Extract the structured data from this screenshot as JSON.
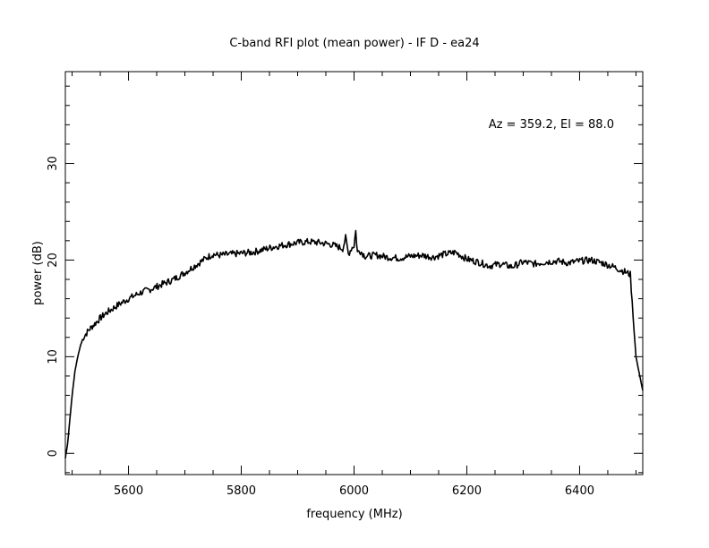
{
  "chart_data": {
    "type": "line",
    "title": "C-band RFI plot (mean power) - IF D - ea24",
    "xlabel": "frequency (MHz)",
    "ylabel": "power (dB)",
    "annotation": "Az = 359.2, El = 88.0",
    "xlim": [
      5488,
      6512
    ],
    "ylim": [
      -2.2,
      39.5
    ],
    "x_ticks": [
      5600,
      5800,
      6000,
      6200,
      6400
    ],
    "y_ticks": [
      0,
      10,
      20,
      30
    ],
    "grid": false,
    "line_color": "#000000",
    "series": [
      {
        "x": [
          5488,
          5492,
          5496,
          5500,
          5505,
          5510,
          5515,
          5520,
          5530,
          5540,
          5550,
          5560,
          5580,
          5600,
          5620,
          5640,
          5660,
          5680,
          5700,
          5720,
          5740,
          5750,
          5760,
          5780,
          5800,
          5820,
          5840,
          5860,
          5880,
          5900,
          5920,
          5940,
          5960,
          5980,
          5985,
          5990,
          5995,
          6000,
          6003,
          6006,
          6010,
          6020,
          6040,
          6060,
          6080,
          6100,
          6120,
          6140,
          6160,
          6180,
          6200,
          6220,
          6240,
          6260,
          6280,
          6300,
          6320,
          6340,
          6360,
          6380,
          6400,
          6420,
          6440,
          6460,
          6480,
          6490,
          6495,
          6500,
          6505,
          6512
        ],
        "y": [
          -0.5,
          1.0,
          3.5,
          6.0,
          8.5,
          10.0,
          11.2,
          12.0,
          12.8,
          13.4,
          14.0,
          14.5,
          15.3,
          16.0,
          16.6,
          17.0,
          17.5,
          18.0,
          18.7,
          19.5,
          20.3,
          20.6,
          20.5,
          20.6,
          20.7,
          20.8,
          21.1,
          21.4,
          21.6,
          21.8,
          21.9,
          21.8,
          21.6,
          21.2,
          22.3,
          20.6,
          21.2,
          21.5,
          23.0,
          20.8,
          21.0,
          20.4,
          20.5,
          20.3,
          20.2,
          20.4,
          20.5,
          20.3,
          20.6,
          20.8,
          20.1,
          19.8,
          19.4,
          19.6,
          19.3,
          19.8,
          19.6,
          19.8,
          19.9,
          19.7,
          19.9,
          20.0,
          19.7,
          19.3,
          18.8,
          18.5,
          14.0,
          10.0,
          8.5,
          6.5
        ]
      }
    ]
  }
}
